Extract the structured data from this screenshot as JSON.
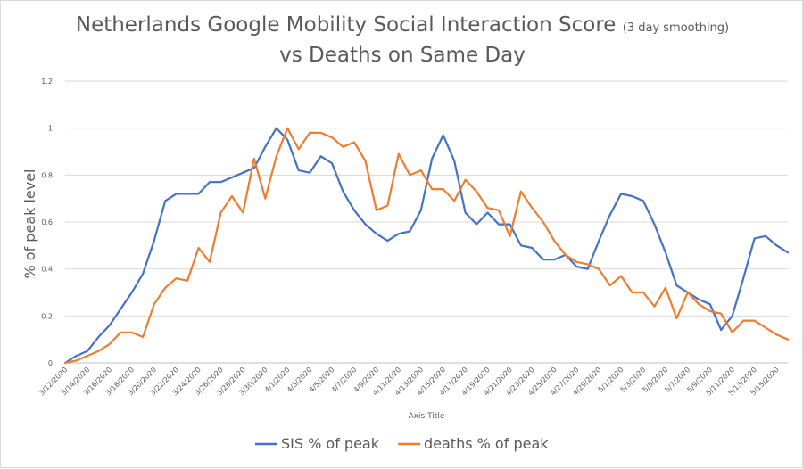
{
  "chart_data": {
    "type": "line",
    "title_main": "Netherlands Google Mobility Social Interaction Score",
    "title_note": "(3 day smoothing)",
    "title_line2": "vs Deaths on Same Day",
    "xlabel": "Axis Title",
    "ylabel": "% of peak level",
    "ylim": [
      0,
      1.2
    ],
    "yticks": [
      "0",
      "0.2",
      "0.4",
      "0.6",
      "0.8",
      "1",
      "1.2"
    ],
    "grid": true,
    "legend_position": "bottom",
    "x": [
      "3/12/2020",
      "3/13/2020",
      "3/14/2020",
      "3/15/2020",
      "3/16/2020",
      "3/17/2020",
      "3/18/2020",
      "3/19/2020",
      "3/20/2020",
      "3/21/2020",
      "3/22/2020",
      "3/23/2020",
      "3/24/2020",
      "3/25/2020",
      "3/26/2020",
      "3/27/2020",
      "3/28/2020",
      "3/29/2020",
      "3/30/2020",
      "3/31/2020",
      "4/1/2020",
      "4/2/2020",
      "4/3/2020",
      "4/4/2020",
      "4/5/2020",
      "4/6/2020",
      "4/7/2020",
      "4/8/2020",
      "4/9/2020",
      "4/10/2020",
      "4/11/2020",
      "4/12/2020",
      "4/13/2020",
      "4/14/2020",
      "4/15/2020",
      "4/16/2020",
      "4/17/2020",
      "4/18/2020",
      "4/19/2020",
      "4/20/2020",
      "4/21/2020",
      "4/22/2020",
      "4/23/2020",
      "4/24/2020",
      "4/25/2020",
      "4/26/2020",
      "4/27/2020",
      "4/28/2020",
      "4/29/2020",
      "4/30/2020",
      "5/1/2020",
      "5/2/2020",
      "5/3/2020",
      "5/4/2020",
      "5/5/2020",
      "5/6/2020",
      "5/7/2020",
      "5/8/2020",
      "5/9/2020",
      "5/10/2020",
      "5/11/2020",
      "5/12/2020",
      "5/13/2020",
      "5/14/2020",
      "5/15/2020",
      "5/16/2020"
    ],
    "tick_labels": [
      "3/12/2020",
      "3/14/2020",
      "3/16/2020",
      "3/18/2020",
      "3/20/2020",
      "3/22/2020",
      "3/24/2020",
      "3/26/2020",
      "3/28/2020",
      "3/30/2020",
      "4/1/2020",
      "4/3/2020",
      "4/5/2020",
      "4/7/2020",
      "4/9/2020",
      "4/11/2020",
      "4/13/2020",
      "4/15/2020",
      "4/17/2020",
      "4/19/2020",
      "4/21/2020",
      "4/23/2020",
      "4/25/2020",
      "4/27/2020",
      "4/29/2020",
      "5/1/2020",
      "5/3/2020",
      "5/5/2020",
      "5/7/2020",
      "5/9/2020",
      "5/11/2020",
      "5/13/2020",
      "5/15/2020"
    ],
    "series": [
      {
        "name": "SIS % of peak",
        "color": "#4472c4",
        "values": [
          0.0,
          0.03,
          0.05,
          0.11,
          0.16,
          0.23,
          0.3,
          0.38,
          0.52,
          0.69,
          0.72,
          0.72,
          0.72,
          0.77,
          0.77,
          0.79,
          0.81,
          0.83,
          0.92,
          1.0,
          0.95,
          0.82,
          0.81,
          0.88,
          0.85,
          0.73,
          0.65,
          0.59,
          0.55,
          0.52,
          0.55,
          0.56,
          0.65,
          0.87,
          0.97,
          0.86,
          0.64,
          0.59,
          0.64,
          0.59,
          0.59,
          0.5,
          0.49,
          0.44,
          0.44,
          0.46,
          0.41,
          0.4,
          0.52,
          0.63,
          0.72,
          0.71,
          0.69,
          0.59,
          0.47,
          0.33,
          0.3,
          0.27,
          0.25,
          0.14,
          0.2,
          0.36,
          0.53,
          0.54,
          0.5,
          0.47
        ]
      },
      {
        "name": "deaths % of peak",
        "color": "#ed7d31",
        "values": [
          0.0,
          0.01,
          0.03,
          0.05,
          0.08,
          0.13,
          0.13,
          0.11,
          0.25,
          0.32,
          0.36,
          0.35,
          0.49,
          0.43,
          0.64,
          0.71,
          0.64,
          0.87,
          0.7,
          0.88,
          1.0,
          0.91,
          0.98,
          0.98,
          0.96,
          0.92,
          0.94,
          0.86,
          0.65,
          0.67,
          0.89,
          0.8,
          0.82,
          0.74,
          0.74,
          0.69,
          0.78,
          0.73,
          0.66,
          0.65,
          0.54,
          0.73,
          0.66,
          0.6,
          0.52,
          0.46,
          0.43,
          0.42,
          0.4,
          0.33,
          0.37,
          0.3,
          0.3,
          0.24,
          0.32,
          0.19,
          0.3,
          0.25,
          0.22,
          0.21,
          0.13,
          0.18,
          0.18,
          0.15,
          0.12,
          0.1
        ]
      }
    ]
  }
}
